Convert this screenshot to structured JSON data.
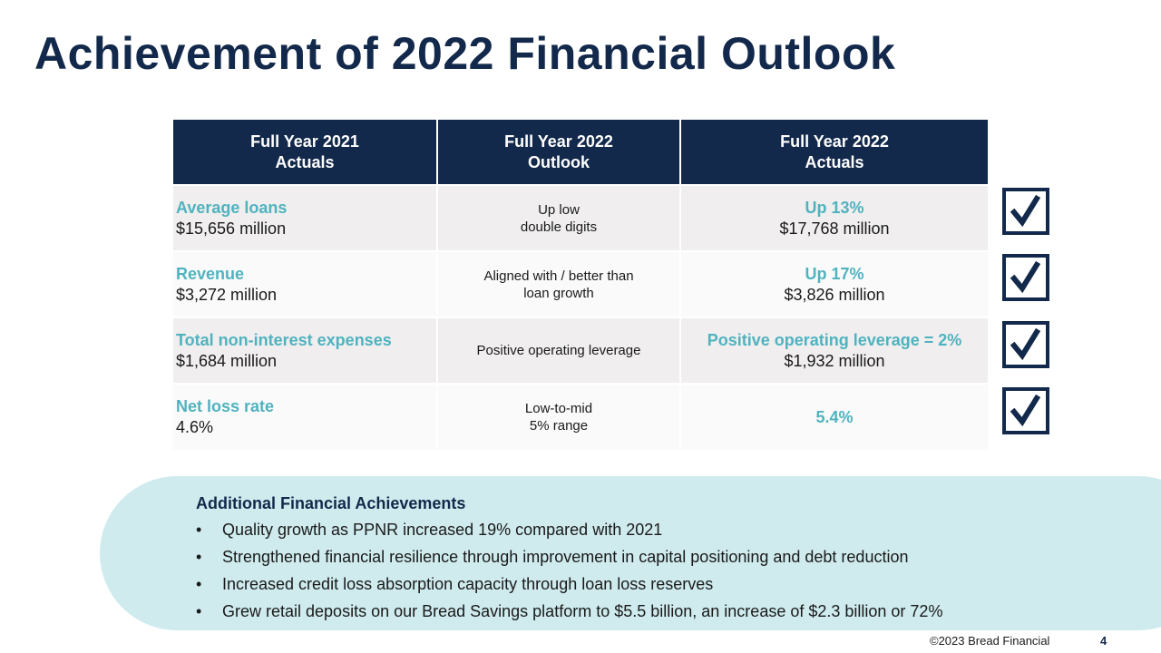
{
  "title": "Achievement of 2022 Financial Outlook",
  "table": {
    "headers": [
      {
        "line1": "Full Year 2021",
        "line2": "Actuals"
      },
      {
        "line1": "Full Year 2022",
        "line2": "Outlook"
      },
      {
        "line1": "Full Year 2022",
        "line2": "Actuals"
      }
    ],
    "rows": [
      {
        "metric": "Average loans",
        "value_2021": "$15,656 million",
        "outlook_line1": "Up low",
        "outlook_line2": "double digits",
        "actual_status": "Up 13%",
        "actual_value": "$17,768 million"
      },
      {
        "metric": "Revenue",
        "value_2021": "$3,272 million",
        "outlook_line1": "Aligned with / better than",
        "outlook_line2": "loan growth",
        "actual_status": "Up 17%",
        "actual_value": "$3,826 million"
      },
      {
        "metric": "Total non-interest expenses",
        "value_2021": "$1,684 million",
        "outlook_line1": "Positive operating leverage",
        "outlook_line2": "",
        "actual_status": "Positive operating leverage = 2%",
        "actual_value": "$1,932 million"
      },
      {
        "metric": "Net loss rate",
        "value_2021": "4.6%",
        "outlook_line1": "Low-to-mid",
        "outlook_line2": "5% range",
        "actual_status": "5.4%",
        "actual_value": ""
      }
    ]
  },
  "achievements": {
    "title": "Additional Financial Achievements",
    "items": [
      "Quality growth as PPNR increased 19% compared with 2021",
      "Strengthened financial resilience through improvement in capital positioning and debt reduction",
      "Increased credit loss absorption capacity through loan loss reserves",
      "Grew retail deposits on our Bread Savings platform to $5.5 billion, an increase of $2.3 billion or 72%"
    ]
  },
  "footer": {
    "copyright": "©2023 Bread Financial",
    "page_number": "4"
  },
  "colors": {
    "navy": "#13294b",
    "teal": "#4fb3bf",
    "panel": "#cfebee"
  }
}
